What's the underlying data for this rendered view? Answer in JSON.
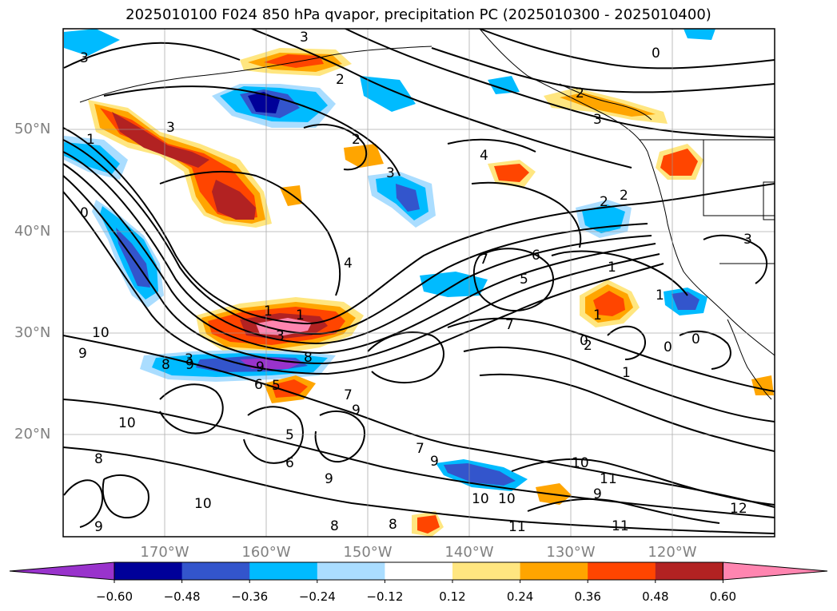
{
  "title": "2025010100 F024 850 hPa qvapor, precipitation PC (2025010300 - 2025010400)",
  "lat_labels": [
    "50°N",
    "40°N",
    "30°N",
    "20°N"
  ],
  "lon_labels": [
    "170°W",
    "160°W",
    "150°W",
    "140°W",
    "130°W",
    "120°W"
  ],
  "colorbar": {
    "ticks": [
      "−0.60",
      "−0.48",
      "−0.36",
      "−0.24",
      "−0.12",
      "0.12",
      "0.24",
      "0.36",
      "0.48",
      "0.60"
    ],
    "colors": [
      "#9933cc",
      "#000099",
      "#3355cc",
      "#00bbff",
      "#aaddff",
      "#ffffff",
      "#ffe680",
      "#ffa500",
      "#ff4500",
      "#b22222",
      "#ff85b0"
    ]
  },
  "contour_labels": [
    "3",
    "3",
    "1",
    "2",
    "1",
    "0",
    "3",
    "2",
    "4",
    "3",
    "2",
    "0",
    "4",
    "2",
    "1",
    "1",
    "7",
    "6",
    "5",
    "7",
    "1",
    "2",
    "1",
    "3",
    "9",
    "10",
    "9",
    "8",
    "9",
    "6",
    "5",
    "8",
    "3",
    "7",
    "9",
    "7",
    "6",
    "5",
    "0",
    "0",
    "1",
    "0",
    "7",
    "9",
    "10",
    "11",
    "9",
    "10",
    "10",
    "11",
    "11",
    "12",
    "9",
    "10",
    "8",
    "9",
    "10",
    "8",
    "8",
    "3",
    "3",
    "2"
  ]
}
